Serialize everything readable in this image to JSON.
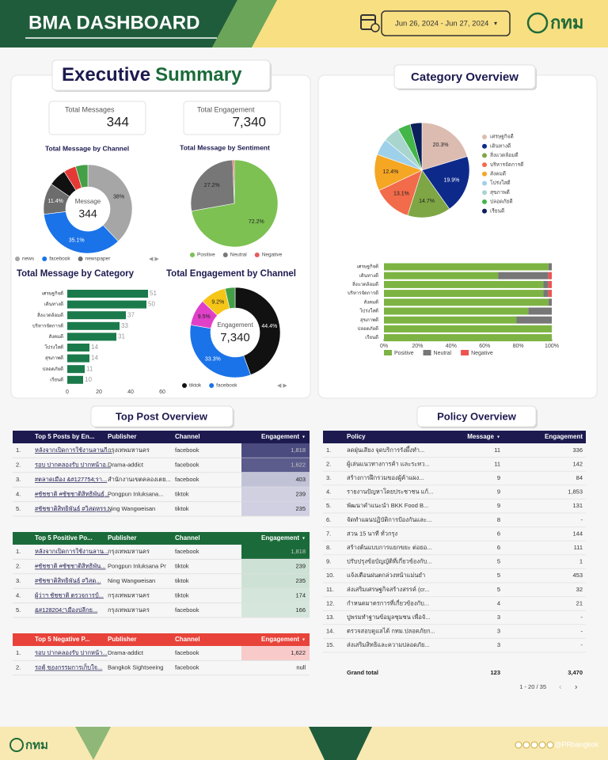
{
  "header": {
    "title": "BMA DASHBOARD",
    "date_range": "Jun 26, 2024 - Jun 27, 2024",
    "logo": "กทม"
  },
  "executive_summary": {
    "title_1": "Executive",
    "title_2": "Summary",
    "kpis": [
      {
        "label": "Total Messages",
        "value": "344"
      },
      {
        "label": "Total Engagement",
        "value": "7,340"
      }
    ]
  },
  "chart_data": [
    {
      "type": "donut",
      "title": "Total Message by Channel",
      "center_label": "Message",
      "center_value": "344",
      "categories": [
        "news",
        "facebook",
        "newspaper",
        null,
        null,
        null
      ],
      "values": [
        38,
        35.1,
        11.4,
        6.5,
        4.5,
        4.5
      ],
      "value_labels": [
        "38%",
        "35.1%",
        "11.4%",
        null,
        null,
        null
      ],
      "colors": [
        "#a6a6a6",
        "#1a73e8",
        "#6d6d6d",
        "#111111",
        "#e53935",
        "#43a047"
      ]
    },
    {
      "type": "pie",
      "title": "Total Message by Sentiment",
      "categories": [
        "Positive",
        "Neutral",
        "Negative"
      ],
      "values": [
        72.2,
        27.2,
        0.6
      ],
      "value_labels": [
        "72.2%",
        "27.2%",
        null
      ],
      "colors": [
        "#7cc152",
        "#777777",
        "#e85a5a"
      ]
    },
    {
      "type": "hbar",
      "title": "Total Message by Category",
      "categories": [
        "เศรษฐกิจดี",
        "เดินทางดี",
        "สิ่งแวดล้อมดี",
        "บริหารจัดการดี",
        "สังคมดี",
        "โปร่งใสดี",
        "สุขภาพดี",
        "ปลอดภัยดี",
        "เรียนดี"
      ],
      "values": [
        51,
        50,
        37,
        33,
        31,
        14,
        14,
        11,
        10
      ],
      "color": "#1b7a4b",
      "xlim": [
        0,
        60
      ],
      "xticks": [
        0,
        20,
        40,
        60
      ]
    },
    {
      "type": "donut",
      "title": "Total Engagement by Channel",
      "center_label": "Engagement",
      "center_value": "7,340",
      "categories": [
        "tiktok",
        "facebook",
        null,
        null,
        null
      ],
      "values": [
        44.4,
        33.3,
        9.5,
        9.2,
        3.6
      ],
      "value_labels": [
        "44.4%",
        "33.3%",
        "9.5%",
        "9.2%",
        null
      ],
      "colors": [
        "#111111",
        "#1a73e8",
        "#e040c8",
        "#f5c518",
        "#43a047"
      ]
    },
    {
      "type": "pie",
      "categories": [
        "เศรษฐกิจดี",
        "เดินทางดี",
        "สิ่งแวดล้อมดี",
        "บริหารจัดการดี",
        "สังคมดี",
        "โปร่งใสดี",
        "สุขภาพดี",
        "ปลอดภัยดี",
        "เรียนดี"
      ],
      "values": [
        20.3,
        19.9,
        14.7,
        13.1,
        12.4,
        5.6,
        5.6,
        4.4,
        4.0
      ],
      "value_labels": [
        "20.3%",
        "19.9%",
        "14.7%",
        "13.1%",
        "12.4%",
        null,
        null,
        null,
        null
      ],
      "colors": [
        "#dcbcb0",
        "#0d2a8a",
        "#7ea645",
        "#f26b4b",
        "#f5a623",
        "#9ed0ea",
        "#a9d5cf",
        "#43b649",
        "#0b1f5c"
      ]
    },
    {
      "type": "stacked_hbar",
      "categories": [
        "เศรษฐกิจดี",
        "เดินทางดี",
        "สิ่งแวดล้อมดี",
        "บริหารจัดการดี",
        "สังคมดี",
        "โปร่งใสดี",
        "สุขภาพดี",
        "ปลอดภัยดี",
        "เรียนดี"
      ],
      "series": [
        {
          "name": "Positive",
          "color": "#7cb342",
          "values": [
            98,
            68,
            95,
            95,
            98,
            86,
            79,
            100,
            100
          ]
        },
        {
          "name": "Neutral",
          "color": "#777777",
          "values": [
            2,
            30,
            3,
            3,
            2,
            14,
            21,
            0,
            0
          ]
        },
        {
          "name": "Negative",
          "color": "#ef5350",
          "values": [
            0,
            2,
            2,
            2,
            0,
            0,
            0,
            0,
            0
          ]
        }
      ],
      "xlim": [
        0,
        100
      ],
      "xticks": [
        {
          "value": 0,
          "label": "0%"
        },
        {
          "value": 20,
          "label": "20%"
        },
        {
          "value": 40,
          "label": "40%"
        },
        {
          "value": 60,
          "label": "60%"
        },
        {
          "value": 80,
          "label": "80%"
        },
        {
          "value": 100,
          "label": "100%"
        }
      ]
    }
  ],
  "category_overview": {
    "title": "Category Overview"
  },
  "top_post_overview": {
    "title": "Top Post Overview",
    "tables": [
      {
        "columns": [
          "Top 5 Posts by En...",
          "Publisher",
          "Channel",
          "Engagement"
        ],
        "rows": [
          [
            "1.",
            "หลังจากเปิดการใช้งานลานกี...",
            "กรุงเทพมหานคร",
            "facebook",
            "1,818"
          ],
          [
            "2.",
            "รอบ ปากคลองรับ ปากหน้าอ...",
            "Drama-addict",
            "facebook",
            "1,622"
          ],
          [
            "3.",
            "#ตลาดเมือง &#127754;รา...",
            "สำนักงานเขตคลองเตย...",
            "facebook",
            "403"
          ],
          [
            "4.",
            "#ชัชชาติ #ชัชชาติสิทธิพันธุ์...",
            "Pongpun Inluksana...",
            "tiktok",
            "239"
          ],
          [
            "5.",
            "#ชัชชาติสิทธิพันธุ์ #วิสดุหรร...",
            "Ning Wangweisan",
            "tiktok",
            "235"
          ]
        ]
      },
      {
        "columns": [
          "Top 5 Positive Po...",
          "Publisher",
          "Channel",
          "Engagement"
        ],
        "rows": [
          [
            "1.",
            "หลังจากเปิดการใช้งานลาน...",
            "กรุงเทพมหานคร",
            "facebook",
            "1,818"
          ],
          [
            "2.",
            "#ชัชชาติ #ชัชชาติสิทธิพัน...",
            "Pongpun Inluksana Pr",
            "tiktok",
            "239"
          ],
          [
            "3.",
            "#ชัชชาติสิทธิพันธุ์ #วิสดุ...",
            "Ning Wangweisan",
            "tiktok",
            "235"
          ],
          [
            "4.",
            "ผู้ว่าฯ ชัชชาติ ตรวจการป์...",
            "กรุงเทพมหานคร",
            "tiktok",
            "174"
          ],
          [
            "5.",
            "&#128204;\"เมืองปลีกย...",
            "กรุงเทพมหานคร",
            "facebook",
            "166"
          ]
        ]
      },
      {
        "columns": [
          "Top 5 Negative P...",
          "Publisher",
          "Channel",
          "Engagement"
        ],
        "rows": [
          [
            "1.",
            "รอบ ปากคลองรับ ปากหน้า...",
            "Drama-addict",
            "facebook",
            "1,622"
          ],
          [
            "2.",
            "รถตู้ ของกรรมการเก็บใจ...",
            "Bangkok Sightseeing",
            "facebook",
            "null"
          ]
        ]
      }
    ]
  },
  "policy_overview": {
    "title": "Policy Overview",
    "columns": [
      "Policy",
      "Message",
      "Engagement"
    ],
    "rows": [
      [
        "1.",
        "ลดฝุ่นเสียง จุดบริการรังผึ้งทำ...",
        "11",
        "336"
      ],
      [
        "2.",
        "ผู้เล่นแนวทางการค้า และระหว...",
        "11",
        "142"
      ],
      [
        "3.",
        "สร้างการฝึกรวมของผู้ค้าแผง...",
        "9",
        "84"
      ],
      [
        "4.",
        "รายงานปัญหาโดยประชาชน แก้...",
        "9",
        "1,853"
      ],
      [
        "5.",
        "พัฒนาคำแนะนำ BKK Food B...",
        "9",
        "131"
      ],
      [
        "6.",
        "จัดทำแผนปฏิบัติการป้องกันและ...",
        "8",
        "-"
      ],
      [
        "7.",
        "สวน 15 นาที ทั่วกรุง",
        "6",
        "144"
      ],
      [
        "8.",
        "สร้างต้นแบบการแยกขยะ ต่อยอ...",
        "6",
        "111"
      ],
      [
        "9.",
        "ปรับปรุงข้อบัญญัติที่เกี่ยวข้องกับ...",
        "5",
        "1"
      ],
      [
        "10.",
        "แจ้งเตือนฝนตกล่วงหน้าแม่นยำ",
        "5",
        "453"
      ],
      [
        "11.",
        "ส่งเสริมเศรษฐกิจสร้างสรรค์ (cr...",
        "5",
        "32"
      ],
      [
        "12.",
        "กำหนดมาตรการที่เกี่ยวข้องกับ...",
        "4",
        "21"
      ],
      [
        "13.",
        "ปูพรมทำฐานข้อมูลชุมชน เพื่อจั...",
        "3",
        "-"
      ],
      [
        "14.",
        "ตรวจสอบดูแลได้ กทม.ปลอดภัยก...",
        "3",
        "-"
      ],
      [
        "15.",
        "ส่งเสริมสิทธิและความปลอดภัย...",
        "3",
        "-"
      ]
    ],
    "total": [
      "Grand total",
      "123",
      "3,470"
    ],
    "pagination": "1 - 20 / 35"
  },
  "footer": {
    "logo": "กทม",
    "handle": "@PRbangkok"
  }
}
